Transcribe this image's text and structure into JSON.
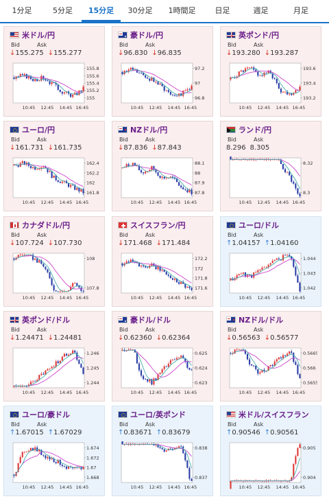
{
  "tabs": [
    {
      "label": "1分足",
      "active": false
    },
    {
      "label": "5分足",
      "active": false
    },
    {
      "label": "15分足",
      "active": true
    },
    {
      "label": "30分足",
      "active": false
    },
    {
      "label": "1時間足",
      "active": false
    },
    {
      "label": "日足",
      "active": false
    },
    {
      "label": "週足",
      "active": false
    },
    {
      "label": "月足",
      "active": false
    }
  ],
  "labels": {
    "bid": "Bid",
    "ask": "Ask"
  },
  "colors": {
    "bull": "#e03a3a",
    "bear": "#2c3fa8",
    "ma": "#cc44cc",
    "ma2": "#44aaaa",
    "down": "#d0311f",
    "up": "#2f7bd0"
  },
  "pairs": [
    {
      "name": "米ドル/円",
      "flag": "us",
      "dir": "down",
      "bid": "155.275",
      "ask": "155.277",
      "yticks": [
        "155.8",
        "155.6",
        "155.4",
        "155.2",
        "155"
      ],
      "xticks": [
        "10:45",
        "12:45",
        "14:45",
        "16:45"
      ],
      "trend": [
        155.55,
        155.6,
        155.5,
        155.55,
        155.35,
        155.15,
        155.05,
        155.25
      ]
    },
    {
      "name": "豪ドル/円",
      "flag": "au",
      "dir": "down",
      "bid": "96.830",
      "ask": "96.835",
      "yticks": [
        "97.2",
        "97",
        "96.8"
      ],
      "xticks": [
        "10:45",
        "12:45",
        "14:45",
        "16:45"
      ],
      "trend": [
        97.15,
        97.2,
        97.1,
        97.05,
        96.95,
        96.85,
        96.85,
        96.95
      ]
    },
    {
      "name": "英ポンド/円",
      "flag": "gb",
      "dir": "down",
      "bid": "193.280",
      "ask": "193.287",
      "yticks": [
        "193.6",
        "193.4",
        "193.2"
      ],
      "xticks": [
        "10:45",
        "12:45",
        "14:45",
        "16:45"
      ],
      "trend": [
        193.45,
        193.55,
        193.6,
        193.5,
        193.55,
        193.3,
        193.25,
        193.35
      ]
    },
    {
      "name": "ユーロ/円",
      "flag": "eu",
      "dir": "down",
      "bid": "161.731",
      "ask": "161.735",
      "yticks": [
        "162.4",
        "162.2",
        "162",
        "161.8"
      ],
      "xticks": [
        "10:45",
        "12:45",
        "14:45",
        "16:45"
      ],
      "trend": [
        162.35,
        162.4,
        162.3,
        162.35,
        162.1,
        162.0,
        161.9,
        161.8
      ]
    },
    {
      "name": "NZドル/円",
      "flag": "nz",
      "dir": "down",
      "bid": "87.836",
      "ask": "87.843",
      "yticks": [
        "88.1",
        "88",
        "87.9",
        "87.8"
      ],
      "xticks": [
        "10:45",
        "12:45",
        "14:45",
        "16:45"
      ],
      "trend": [
        88.05,
        88.1,
        88.0,
        88.05,
        87.95,
        87.95,
        87.85,
        87.8
      ]
    },
    {
      "name": "ランド/円",
      "flag": "za",
      "dir": "none",
      "bid": "8.296",
      "ask": "8.305",
      "yticks": [
        "8.32",
        "8.3"
      ],
      "xticks": [
        "10:45",
        "12:45",
        "14:45",
        "16:45"
      ],
      "trend": [
        8.335,
        8.33,
        8.33,
        8.325,
        8.33,
        8.32,
        8.31,
        8.295
      ]
    },
    {
      "name": "カナダドル/円",
      "flag": "ca",
      "dir": "down",
      "bid": "107.724",
      "ask": "107.730",
      "yticks": [
        "108",
        "107.8"
      ],
      "xticks": [
        "10:45",
        "12:45",
        "14:45",
        "16:45"
      ],
      "trend": [
        108.0,
        108.05,
        108.0,
        107.95,
        107.8,
        107.7,
        107.85,
        107.75
      ]
    },
    {
      "name": "スイスフラン/円",
      "flag": "ch",
      "dir": "down",
      "bid": "171.468",
      "ask": "171.484",
      "yticks": [
        "172.2",
        "172",
        "171.8",
        "171.6"
      ],
      "xticks": [
        "10:45",
        "12:45",
        "14:45",
        "16:45"
      ],
      "trend": [
        172.1,
        172.2,
        172.0,
        172.05,
        171.95,
        171.8,
        171.7,
        171.55
      ]
    },
    {
      "name": "ユーロ/ドル",
      "flag": "eu",
      "dir": "up",
      "bid": "1.04157",
      "ask": "1.04160",
      "yticks": [
        "1.044",
        "1.043",
        "1.042"
      ],
      "xticks": [
        "10:45",
        "12:45",
        "14:45",
        "16:45"
      ],
      "trend": [
        1.0425,
        1.043,
        1.0428,
        1.0432,
        1.0437,
        1.044,
        1.0443,
        1.0418
      ]
    },
    {
      "name": "英ポンド/ドル",
      "flag": "gb",
      "dir": "down",
      "bid": "1.24471",
      "ask": "1.24481",
      "yticks": [
        "1.246",
        "1.245",
        "1.244"
      ],
      "xticks": [
        "10:45",
        "12:45",
        "14:45",
        "16:45"
      ],
      "trend": [
        1.2437,
        1.2436,
        1.2441,
        1.2446,
        1.2452,
        1.2458,
        1.2462,
        1.2447
      ]
    },
    {
      "name": "豪ドル/ドル",
      "flag": "au",
      "dir": "down",
      "bid": "0.62360",
      "ask": "0.62364",
      "yticks": [
        "0.625",
        "0.624",
        "0.623"
      ],
      "xticks": [
        "10:45",
        "12:45",
        "14:45",
        "16:45"
      ],
      "trend": [
        0.6252,
        0.6255,
        0.6233,
        0.623,
        0.6238,
        0.6245,
        0.6247,
        0.6237
      ]
    },
    {
      "name": "NZドル/ドル",
      "flag": "nz",
      "dir": "down",
      "bid": "0.56563",
      "ask": "0.56577",
      "yticks": [
        "0.5665",
        "0.566",
        "0.5655"
      ],
      "xticks": [
        "10:45",
        "12:45",
        "14:45",
        "16:45"
      ],
      "trend": [
        0.5665,
        0.5668,
        0.5661,
        0.5658,
        0.5661,
        0.5663,
        0.5666,
        0.5656
      ]
    },
    {
      "name": "ユーロ/豪ドル",
      "flag": "eu",
      "dir": "up",
      "bid": "1.67015",
      "ask": "1.67029",
      "yticks": [
        "1.674",
        "1.672",
        "1.67",
        "1.668"
      ],
      "xticks": [
        "10:45",
        "12:45",
        "14:45",
        "16:45"
      ],
      "trend": [
        1.6685,
        1.6735,
        1.674,
        1.6725,
        1.6715,
        1.6705,
        1.6695,
        1.67
      ]
    },
    {
      "name": "ユーロ/英ポンド",
      "flag": "eu",
      "dir": "up",
      "bid": "0.83671",
      "ask": "0.83679",
      "yticks": [
        "0.838",
        "0.837"
      ],
      "xticks": [
        "10:45",
        "12:45",
        "14:45",
        "16:45"
      ],
      "trend": [
        0.8383,
        0.8385,
        0.8381,
        0.8382,
        0.8379,
        0.838,
        0.8381,
        0.8367
      ]
    },
    {
      "name": "米ドル/スイスフラン",
      "flag": "us",
      "dir": "up",
      "bid": "0.90546",
      "ask": "0.90561",
      "yticks": [
        "0.905",
        "0.904"
      ],
      "xticks": [
        "10:45",
        "12:45",
        "14:45",
        "16:45"
      ],
      "trend": [
        0.9036,
        0.9035,
        0.9034,
        0.9035,
        0.9036,
        0.9034,
        0.9038,
        0.9054
      ]
    }
  ]
}
